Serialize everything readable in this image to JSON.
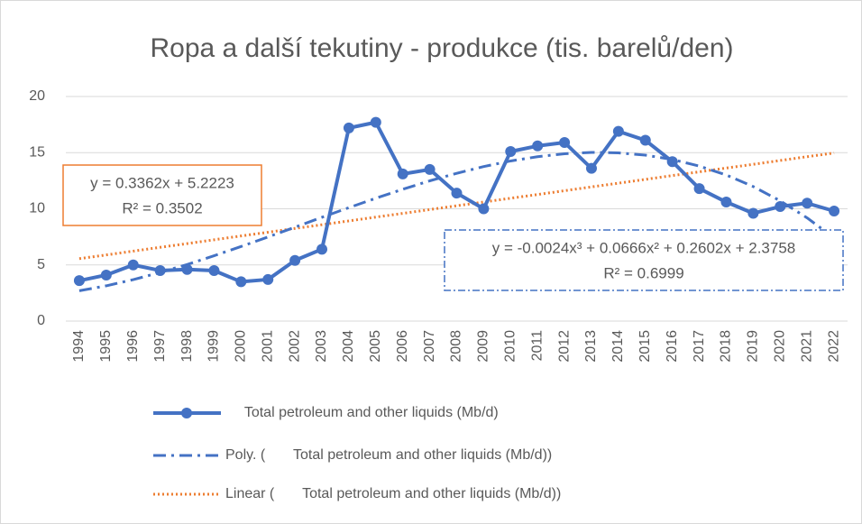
{
  "chart_data": {
    "type": "line",
    "title": "Ropa a další tekutiny - produkce (tis. barelů/den)",
    "categories": [
      "1994",
      "1995",
      "1996",
      "1997",
      "1998",
      "1999",
      "2000",
      "2001",
      "2002",
      "2003",
      "2004",
      "2005",
      "2006",
      "2007",
      "2008",
      "2009",
      "2010",
      "2011",
      "2012",
      "2013",
      "2014",
      "2015",
      "2016",
      "2017",
      "2018",
      "2019",
      "2020",
      "2021",
      "2022"
    ],
    "series": [
      {
        "name": "       Total petroleum and other liquids (Mb/d)",
        "color": "#4472c4",
        "style": "solid",
        "markers": true,
        "values": [
          3.6,
          4.1,
          5.0,
          4.5,
          4.6,
          4.5,
          3.5,
          3.7,
          5.4,
          6.4,
          17.2,
          17.7,
          13.1,
          13.5,
          11.4,
          10.0,
          15.1,
          15.6,
          15.9,
          13.6,
          16.9,
          16.1,
          14.2,
          11.8,
          10.6,
          9.6,
          10.2,
          10.5,
          9.8
        ]
      },
      {
        "name": "Poly. (       Total petroleum and other liquids (Mb/d))",
        "color": "#4472c4",
        "style": "dashdot",
        "markers": false,
        "values": [
          2.7,
          3.14,
          3.69,
          4.33,
          5.04,
          5.82,
          6.64,
          7.49,
          8.36,
          9.24,
          10.1,
          10.94,
          11.74,
          12.49,
          13.16,
          13.76,
          14.26,
          14.64,
          14.9,
          15.02,
          14.98,
          14.78,
          14.39,
          13.8,
          13.01,
          11.98,
          10.71,
          9.19,
          7.4
        ]
      },
      {
        "name": "Linear (       Total petroleum and other liquids (Mb/d))",
        "color": "#ed7d31",
        "style": "dotted",
        "markers": false,
        "values": [
          5.56,
          5.89,
          6.23,
          6.57,
          6.9,
          7.24,
          7.58,
          7.91,
          8.25,
          8.58,
          8.92,
          9.26,
          9.59,
          9.93,
          10.27,
          10.6,
          10.94,
          11.27,
          11.61,
          11.95,
          12.28,
          12.62,
          12.96,
          13.29,
          13.63,
          13.96,
          14.3,
          14.64,
          14.97
        ]
      }
    ],
    "annotations": [
      {
        "lines": [
          "y = 0.3362x + 5.2223",
          "R² = 0.3502"
        ],
        "color": "#ed7d31"
      },
      {
        "lines": [
          "y = -0.0024x³ + 0.0666x² + 0.2602x + 2.3758",
          "R² = 0.6999"
        ],
        "color": "#4472c4"
      }
    ],
    "ylim": [
      0,
      20
    ],
    "yticks": [
      0,
      5,
      10,
      15,
      20
    ],
    "grid": true
  }
}
